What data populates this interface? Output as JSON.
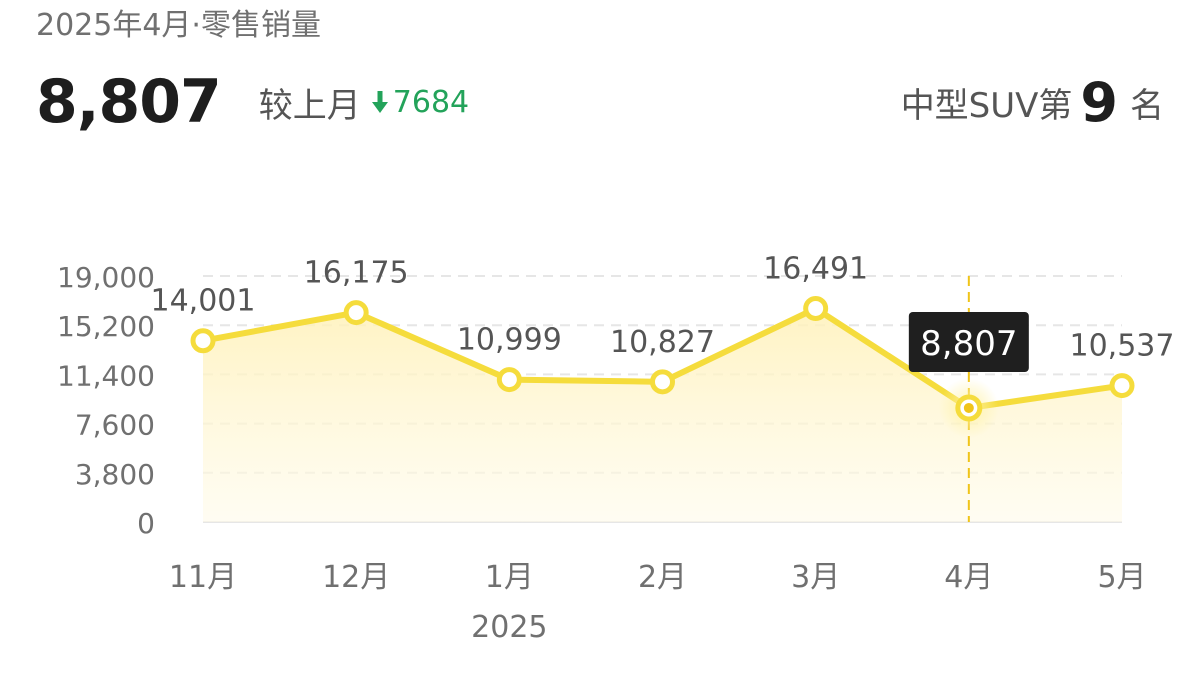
{
  "header": {
    "subtitle": "2025年4月·零售销量",
    "value": "8,807",
    "compare_label": "较上月",
    "change": "7684",
    "change_direction": "down",
    "change_color": "#23a35a",
    "rank_prefix": "中型SUV第",
    "rank_number": "9",
    "rank_suffix": "名"
  },
  "chart_data": {
    "type": "area",
    "title": "",
    "xlabel": "",
    "ylabel": "",
    "categories": [
      "11月",
      "12月",
      "1月",
      "2月",
      "3月",
      "4月",
      "5月"
    ],
    "year_label": "2025",
    "year_label_under": "1月",
    "series": [
      {
        "values": [
          14001,
          16175,
          10999,
          10827,
          16491,
          8807,
          10537
        ],
        "labels": [
          "14,001",
          "16,175",
          "10,999",
          "10,827",
          "16,491",
          "8,807",
          "10,537"
        ]
      }
    ],
    "y_ticks": [
      0,
      3800,
      7600,
      11400,
      15200,
      19000
    ],
    "y_tick_labels": [
      "0",
      "3,800",
      "7,600",
      "11,400",
      "15,200",
      "19,000"
    ],
    "ylim": [
      0,
      19000
    ],
    "grid": true,
    "highlight_index": 5,
    "highlight_label": "8,807",
    "colors": {
      "line": "#f5dc3c",
      "fill_top": "#fff1b8",
      "fill_bottom": "#fffbea",
      "tooltip_bg": "#1f1f1f",
      "tooltip_text": "#ffffff",
      "grid": "#e6e6e6",
      "axis_text": "#707070"
    }
  }
}
